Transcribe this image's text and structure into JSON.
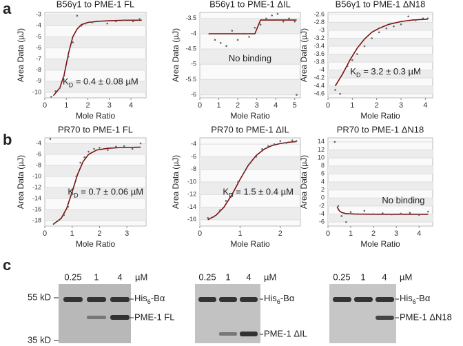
{
  "panel_labels": [
    "a",
    "b",
    "c"
  ],
  "chart_data": [
    {
      "type": "scatter",
      "title": "B56γ1 to PME-1 FL",
      "x_label": "Mole Ratio",
      "y_label": "Area Data (µJ)",
      "xlim": [
        0,
        4.7
      ],
      "ylim": [
        -10.5,
        -2.8
      ],
      "xticks": [
        0,
        1,
        2,
        3,
        4
      ],
      "yticks": [
        -10,
        -9,
        -8,
        -7,
        -6,
        -5,
        -4,
        -3
      ],
      "grid": true,
      "annotation": {
        "main": "K",
        "sub": "D",
        "rest": " = 0.4 ± 0.08 µM"
      },
      "points": {
        "color": "#666666",
        "x": [
          0.3,
          0.5,
          0.7,
          0.9,
          1.1,
          1.3,
          1.5,
          1.7,
          1.9,
          2.2,
          2.5,
          2.9,
          3.3,
          3.7,
          4.1,
          4.4
        ],
        "values": [
          -10.4,
          -9.9,
          -9.6,
          -8.5,
          -6.8,
          -5.5,
          -3.1,
          -4.0,
          -3.8,
          -3.7,
          -3.6,
          -3.8,
          -3.6,
          -3.5,
          -3.6,
          -3.4
        ]
      },
      "fit": {
        "color": "#7a1010",
        "x": [
          0.4,
          0.7,
          0.9,
          1.1,
          1.3,
          1.5,
          1.7,
          2,
          2.5,
          3,
          3.5,
          4,
          4.5
        ],
        "values": [
          -10.3,
          -9.6,
          -8.4,
          -6.5,
          -5,
          -4.3,
          -3.9,
          -3.7,
          -3.6,
          -3.55,
          -3.52,
          -3.5,
          -3.5
        ]
      }
    },
    {
      "type": "scatter",
      "title": "B56γ1 to PME-1 ΔIL",
      "x_label": "Mole Ratio",
      "y_label": "Area Data (µJ)",
      "xlim": [
        0,
        5.3
      ],
      "ylim": [
        -6.1,
        -3.3
      ],
      "xticks": [
        0,
        1,
        2,
        3,
        4,
        5
      ],
      "yticks": [
        -6,
        -5.5,
        -5,
        -4.5,
        -4,
        -3.5
      ],
      "grid": true,
      "annotation": {
        "main": "No binding"
      },
      "points": {
        "color": "#666666",
        "x": [
          0.5,
          0.8,
          1.1,
          1.4,
          1.7,
          2,
          2.3,
          2.6,
          2.9,
          3.2,
          3.5,
          3.8,
          4.1,
          4.4,
          4.7,
          5,
          5.1
        ],
        "values": [
          -4.0,
          -4.2,
          -4.3,
          -4.4,
          -3.9,
          -4.2,
          -4.0,
          -4.1,
          -3.8,
          -3.7,
          -3.5,
          -3.4,
          -3.35,
          -3.6,
          -3.5,
          -3.6,
          -6.0
        ]
      },
      "fit": {
        "color": "#7a1010",
        "x": [
          0.5,
          2.9,
          3.2,
          5.1
        ],
        "values": [
          -4.0,
          -4.0,
          -3.55,
          -3.55
        ]
      }
    },
    {
      "type": "scatter",
      "title": "B56γ1 to PME-1 ΔN18",
      "x_label": "Mole Ratio",
      "y_label": "Area Data (µJ)",
      "xlim": [
        0,
        4.3
      ],
      "ylim": [
        -4.7,
        -2.55
      ],
      "xticks": [
        0,
        1,
        2,
        3,
        4
      ],
      "yticks": [
        -4.6,
        -4.4,
        -4.2,
        -4,
        -3.8,
        -3.6,
        -3.4,
        -3.2,
        -3,
        -2.8,
        -2.6
      ],
      "grid": true,
      "annotation": {
        "main": "K",
        "sub": "D",
        "rest": " = 3.2 ± 0.3 µM"
      },
      "points": {
        "color": "#666666",
        "x": [
          0.3,
          0.5,
          0.8,
          1,
          1.2,
          1.5,
          1.8,
          2.1,
          2.4,
          2.7,
          3,
          3.3,
          3.6,
          3.9,
          4.1
        ],
        "values": [
          -4.5,
          -4.6,
          -3.9,
          -3.75,
          -3.6,
          -3.4,
          -3.2,
          -3.05,
          -2.95,
          -2.9,
          -2.85,
          -2.65,
          -2.75,
          -2.7,
          -2.7
        ]
      },
      "fit": {
        "color": "#7a1010",
        "x": [
          0.3,
          0.6,
          0.9,
          1.2,
          1.5,
          1.8,
          2.1,
          2.5,
          3,
          3.5,
          4.1
        ],
        "values": [
          -4.4,
          -4.1,
          -3.75,
          -3.45,
          -3.22,
          -3.05,
          -2.95,
          -2.85,
          -2.78,
          -2.74,
          -2.72
        ]
      }
    },
    {
      "type": "scatter",
      "title": "PR70 to PME-1 FL",
      "x_label": "Mole Ratio",
      "y_label": "Area Data (µJ)",
      "xlim": [
        0,
        3.7
      ],
      "ylim": [
        -19,
        -3
      ],
      "xticks": [
        0,
        1,
        2,
        3
      ],
      "yticks": [
        -18,
        -16,
        -14,
        -12,
        -10,
        -8,
        -6,
        -4
      ],
      "grid": true,
      "annotation": {
        "main": "K",
        "sub": "D",
        "rest": " = 0.7 ± 0.06 µM"
      },
      "points": {
        "color": "#666666",
        "x": [
          0.2,
          0.35,
          0.5,
          0.7,
          0.85,
          1.0,
          1.15,
          1.3,
          1.45,
          1.6,
          1.8,
          2,
          2.3,
          2.6,
          2.9,
          3.2,
          3.5
        ],
        "values": [
          -3.2,
          -18.5,
          -18,
          -17,
          -15.5,
          -13,
          -10,
          -7.5,
          -6.5,
          -5.5,
          -5,
          -4.8,
          -5.2,
          -4.6,
          -4.5,
          -5,
          -4
        ]
      },
      "fit": {
        "color": "#7a1010",
        "x": [
          0.3,
          0.6,
          0.8,
          1.0,
          1.2,
          1.4,
          1.6,
          1.9,
          2.3,
          2.8,
          3.5
        ],
        "values": [
          -18.7,
          -17.6,
          -15.8,
          -12.8,
          -9.6,
          -7.3,
          -6,
          -5.2,
          -4.9,
          -4.75,
          -4.7
        ]
      }
    },
    {
      "type": "scatter",
      "title": "PR70 to PME-1 ΔIL",
      "x_label": "Mole Ratio",
      "y_label": "Area Data (µJ)",
      "xlim": [
        0,
        2.5
      ],
      "ylim": [
        -17,
        -3
      ],
      "xticks": [
        0,
        1,
        2
      ],
      "yticks": [
        -16,
        -14,
        -12,
        -10,
        -8,
        -6,
        -4
      ],
      "grid": true,
      "annotation": {
        "main": "K",
        "sub": "D",
        "rest": " = 1.5 ± 0.4 µM"
      },
      "points": {
        "color": "#666666",
        "x": [
          0.2,
          0.35,
          0.5,
          0.65,
          0.8,
          0.95,
          1.1,
          1.25,
          1.4,
          1.55,
          1.7,
          1.85,
          2.0,
          2.15,
          2.3,
          2.4
        ],
        "values": [
          -15.7,
          -15.5,
          -14.5,
          -13,
          -12,
          -10,
          -8.5,
          -7,
          -6,
          -4.8,
          -4.3,
          -4,
          -3.5,
          -3.8,
          -3.4,
          -3.5
        ]
      },
      "fit": {
        "color": "#7a1010",
        "x": [
          0.2,
          0.4,
          0.6,
          0.8,
          1.0,
          1.2,
          1.4,
          1.6,
          1.8,
          2.0,
          2.2,
          2.4
        ],
        "values": [
          -16,
          -15.3,
          -14,
          -12,
          -9.6,
          -7.4,
          -5.8,
          -4.8,
          -4.2,
          -3.9,
          -3.7,
          -3.6
        ]
      }
    },
    {
      "type": "scatter",
      "title": "PR70 to PME-1 ΔN18",
      "x_label": "Mole Ratio",
      "y_label": "Area Data (µJ)",
      "xlim": [
        0,
        4.6
      ],
      "ylim": [
        -7,
        15
      ],
      "xticks": [
        0,
        1,
        2,
        3,
        4
      ],
      "yticks": [
        -6,
        -4,
        -2,
        0,
        2,
        4,
        6,
        8,
        10,
        12,
        14
      ],
      "grid": true,
      "annotation": {
        "main": "No binding"
      },
      "points": {
        "color": "#666666",
        "x": [
          0.3,
          0.45,
          0.6,
          0.8,
          1,
          1.3,
          1.6,
          2,
          2.4,
          2.8,
          3.2,
          3.6,
          4,
          4.4
        ],
        "values": [
          14,
          -2,
          -4.5,
          -6,
          -3.5,
          -4,
          -3.2,
          -4,
          -3.8,
          -4.1,
          -3.9,
          -3.7,
          -4.2,
          -3.4
        ]
      },
      "fit": {
        "color": "#7a1010",
        "x": [
          0.4,
          0.5,
          0.6,
          0.8,
          1.2,
          2,
          3,
          4.4
        ],
        "values": [
          -2.2,
          -3.2,
          -3.6,
          -3.9,
          -4,
          -4.05,
          -4.05,
          -4.05
        ]
      }
    }
  ],
  "gels": {
    "lanes": [
      "0.25",
      "1",
      "4"
    ],
    "unit": "µM",
    "markers": [
      "55 kD",
      "35 kD"
    ],
    "upper_label": {
      "main": "His",
      "sub": "6",
      "rest": "-Bα"
    },
    "lower_labels": [
      "PME-1 FL",
      "PME-1 ΔIL",
      "PME-1 ΔN18"
    ]
  }
}
